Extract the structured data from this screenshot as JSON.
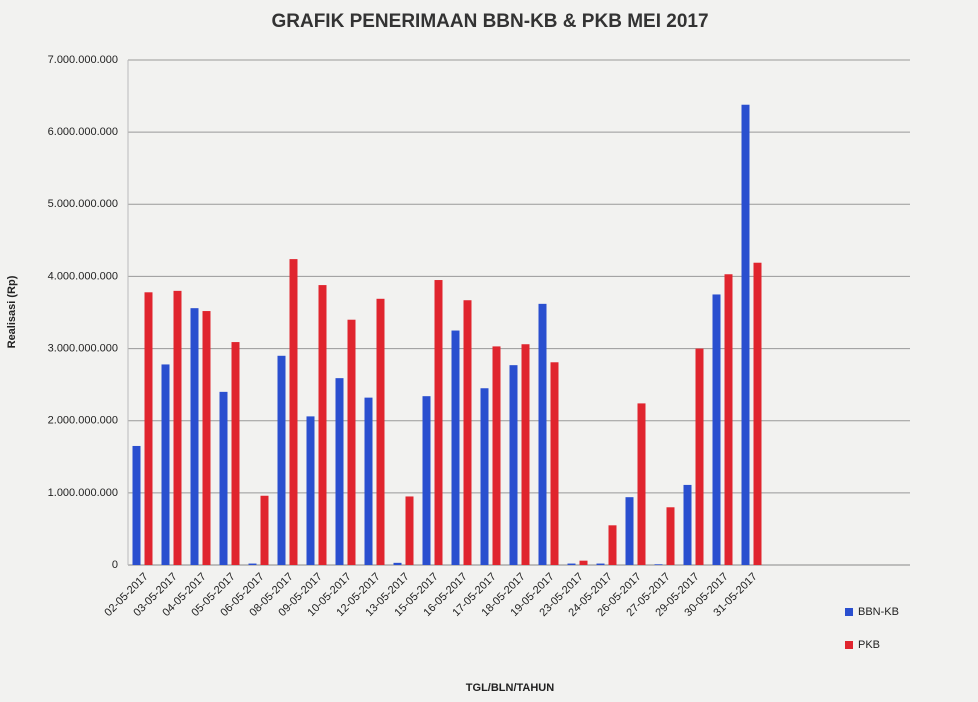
{
  "chart_data": {
    "type": "bar",
    "title": "GRAFIK PENERIMAAN BBN-KB & PKB MEI 2017",
    "x_label": "TGL/BLN/TAHUN",
    "y_label": "Realisasi (Rp)",
    "categories": [
      "02-05-2017",
      "03-05-2017",
      "04-05-2017",
      "05-05-2017",
      "06-05-2017",
      "08-05-2017",
      "09-05-2017",
      "10-05-2017",
      "12-05-2017",
      "13-05-2017",
      "15-05-2017",
      "16-05-2017",
      "17-05-2017",
      "18-05-2017",
      "19-05-2017",
      "23-05-2017",
      "24-05-2017",
      "26-05-2017",
      "27-05-2017",
      "29-05-2017",
      "30-05-2017",
      "31-05-2017"
    ],
    "series": [
      {
        "name": "BBN-KB",
        "color": "#2a4fcf",
        "values": [
          1650000000,
          2780000000,
          3560000000,
          2400000000,
          20000000,
          2900000000,
          2060000000,
          2590000000,
          2320000000,
          30000000,
          2340000000,
          3250000000,
          2450000000,
          2770000000,
          3620000000,
          20000000,
          20000000,
          940000000,
          10000000,
          1110000000,
          3750000000,
          6380000000
        ]
      },
      {
        "name": "PKB",
        "color": "#e0252e",
        "values": [
          3780000000,
          3800000000,
          3520000000,
          3090000000,
          960000000,
          4240000000,
          3880000000,
          3400000000,
          3690000000,
          950000000,
          3950000000,
          3670000000,
          3030000000,
          3060000000,
          2810000000,
          60000000,
          550000000,
          2240000000,
          800000000,
          3000000000,
          4030000000,
          4190000000
        ]
      }
    ],
    "ylim": [
      0,
      7000000000
    ],
    "yticks": [
      0,
      {
        "value": 1000000000,
        "label": "1.000.000.000"
      },
      {
        "value": 2000000000,
        "label": "2.000.000.000"
      },
      {
        "value": 3000000000,
        "label": "3.000.000.000"
      },
      {
        "value": 4000000000,
        "label": "4.000.000.000"
      },
      {
        "value": 5000000000,
        "label": "5.000.000.000"
      },
      {
        "value": 6000000000,
        "label": "6.000.000.000"
      },
      {
        "value": 7000000000,
        "label": "7.000.000.000"
      }
    ],
    "grid": true
  }
}
